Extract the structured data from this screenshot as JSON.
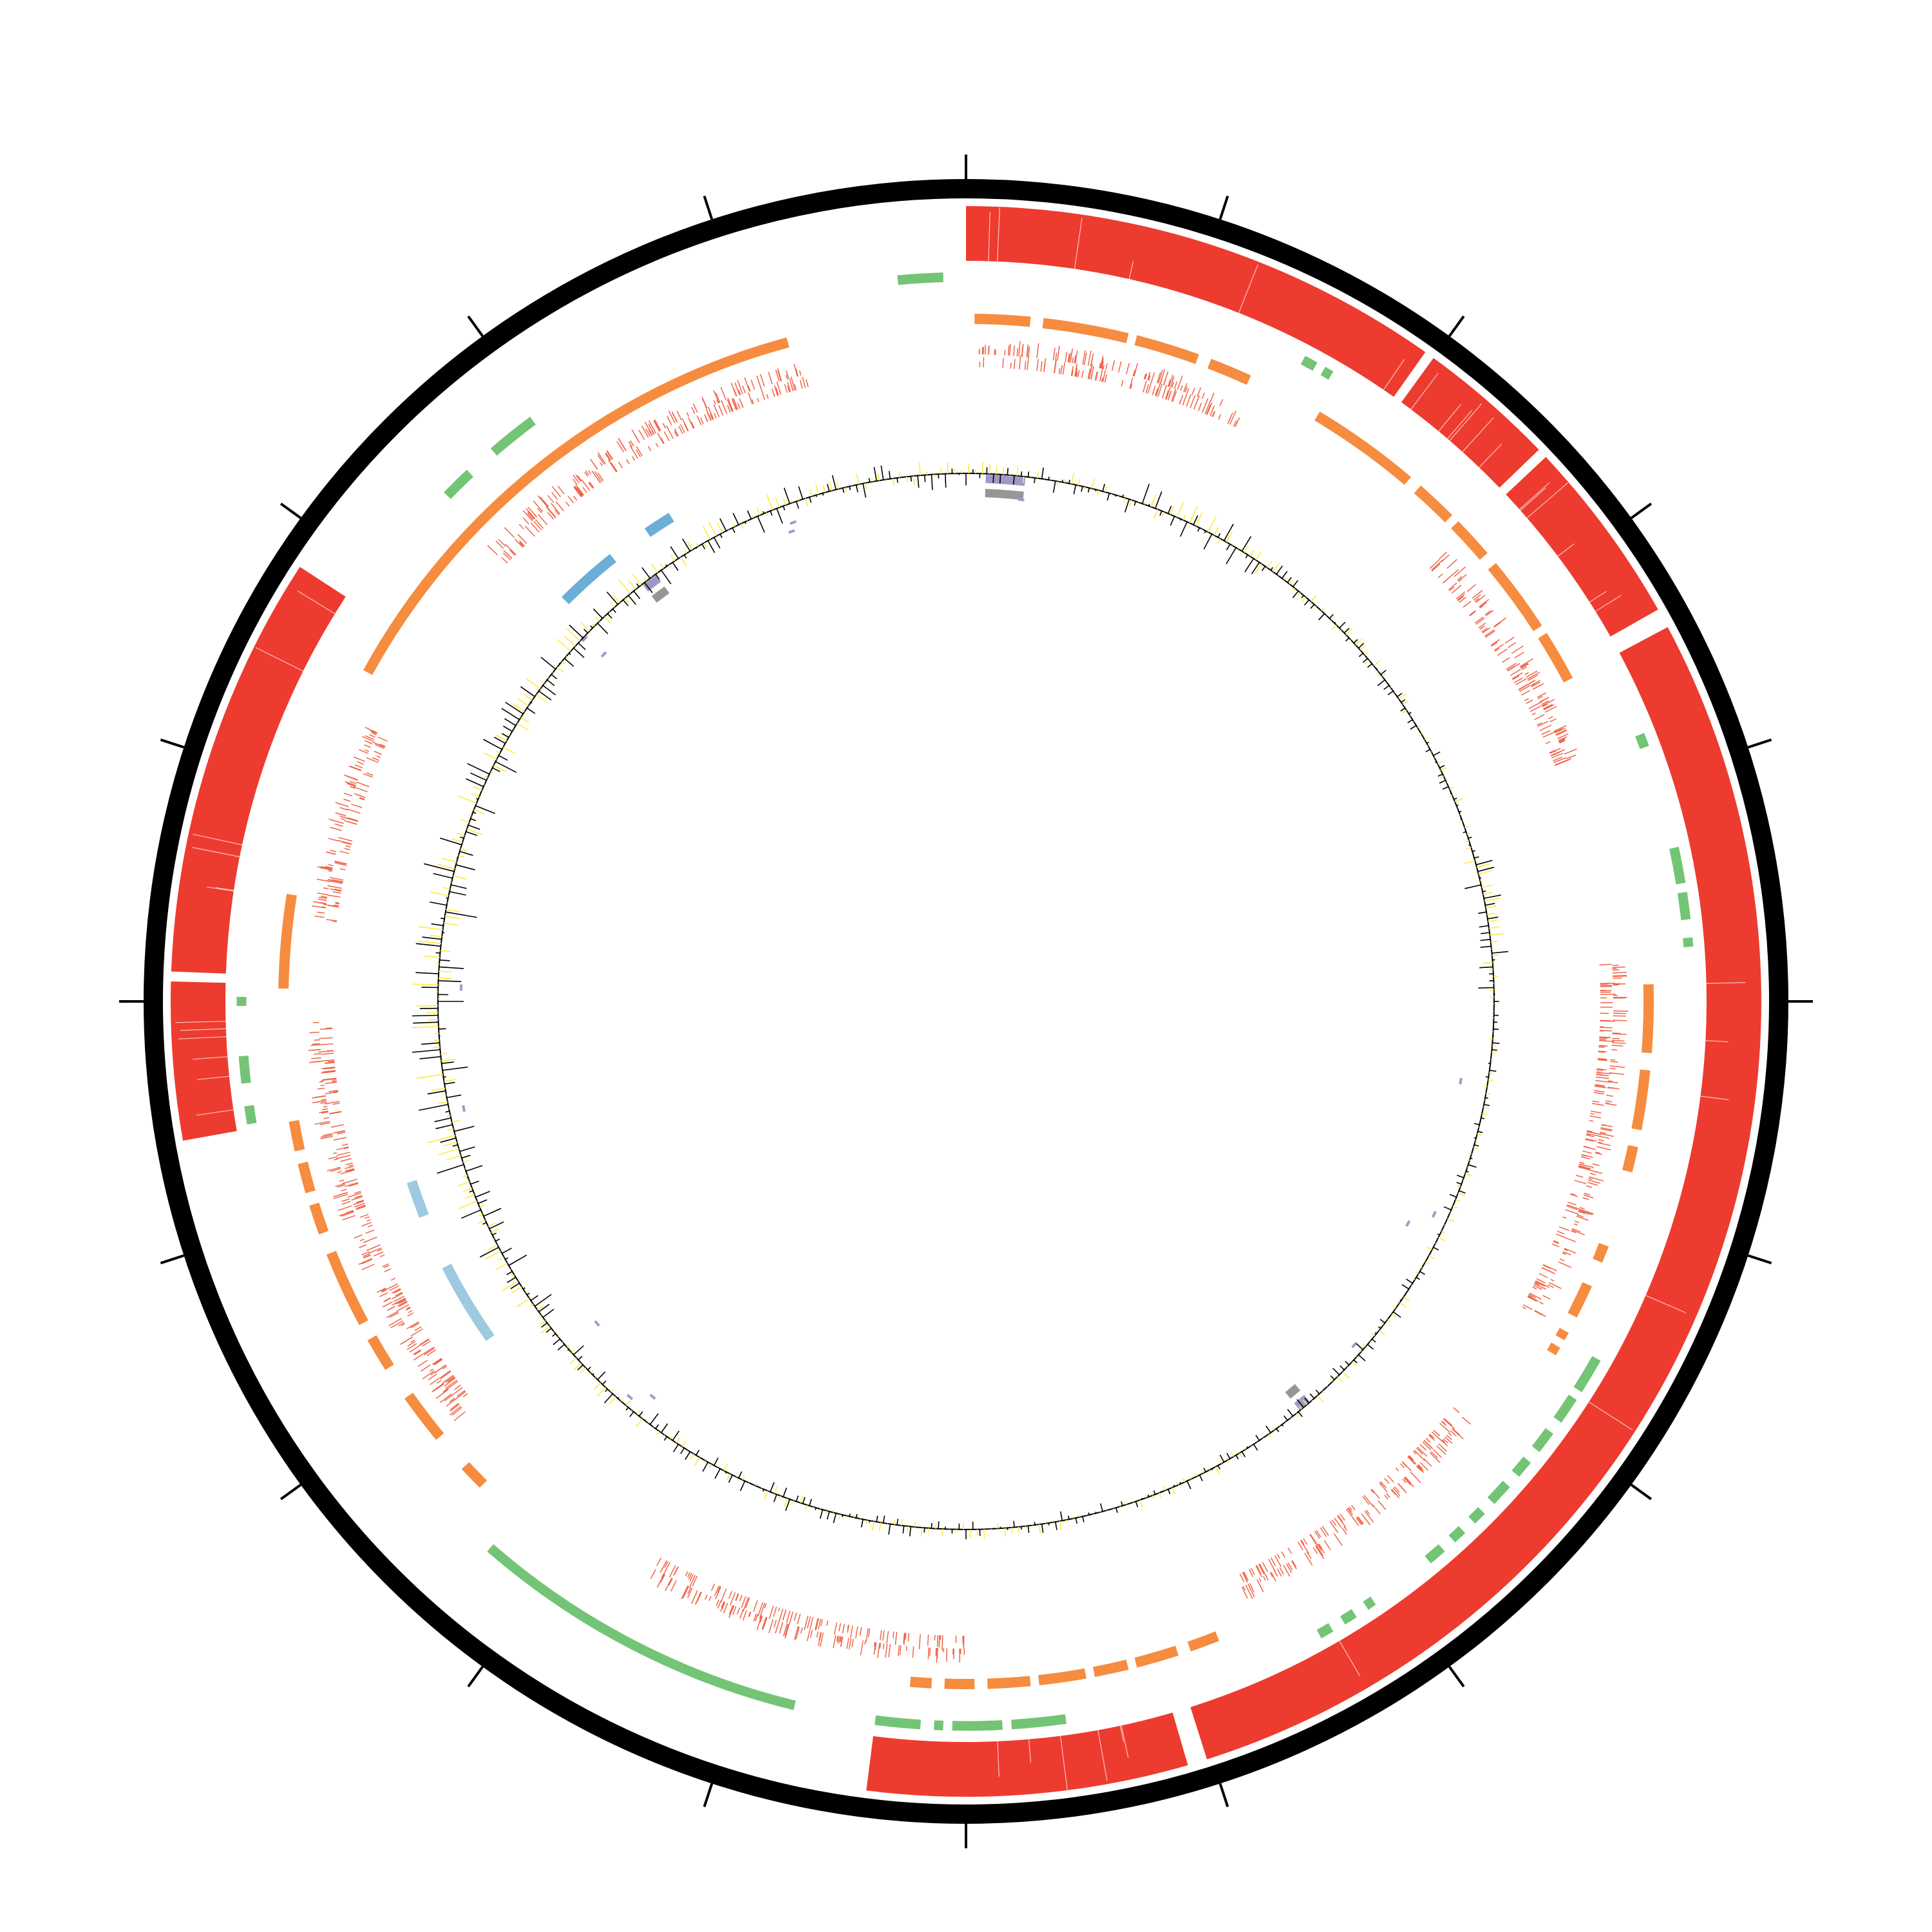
{
  "colors": {
    "background": "#ffffff",
    "backbone": "#000000",
    "homology": "#ee3b2f",
    "segment_orange": "#f68c3f",
    "segment_green": "#74c476",
    "gene_ticks": "#ef6548",
    "segment_blue": "#6baed6",
    "segment_lightblue": "#9ecae1",
    "segment_purple": "#9e9ac8",
    "segment_gray": "#969696",
    "gc_content": "#000000",
    "gc_skew": "#ffeb3b"
  },
  "icons": {
    "genome_map": "circular-genome-map",
    "axis_ticks": "tick-marks"
  },
  "genome_map": {
    "tick_count": 20,
    "tracks": {
      "homology_blocks": [
        {
          "start": 0.0,
          "end": 0.098
        },
        {
          "start": 0.1,
          "end": 0.128
        },
        {
          "start": 0.13,
          "end": 0.168
        },
        {
          "start": 0.172,
          "end": 0.451
        },
        {
          "start": 0.455,
          "end": 0.52
        },
        {
          "start": 0.722,
          "end": 0.754
        },
        {
          "start": 0.756,
          "end": 0.842
        }
      ],
      "segments_orange": [
        {
          "start": 0.002,
          "end": 0.015
        },
        {
          "start": 0.018,
          "end": 0.038
        },
        {
          "start": 0.04,
          "end": 0.055
        },
        {
          "start": 0.058,
          "end": 0.068
        },
        {
          "start": 0.086,
          "end": 0.112
        },
        {
          "start": 0.115,
          "end": 0.125
        },
        {
          "start": 0.127,
          "end": 0.137
        },
        {
          "start": 0.14,
          "end": 0.158
        },
        {
          "start": 0.16,
          "end": 0.172
        },
        {
          "start": 0.246,
          "end": 0.262
        },
        {
          "start": 0.266,
          "end": 0.28
        },
        {
          "start": 0.284,
          "end": 0.29
        },
        {
          "start": 0.308,
          "end": 0.312
        },
        {
          "start": 0.318,
          "end": 0.326
        },
        {
          "start": 0.33,
          "end": 0.332
        },
        {
          "start": 0.334,
          "end": 0.336
        },
        {
          "start": 0.44,
          "end": 0.447
        },
        {
          "start": 0.45,
          "end": 0.46
        },
        {
          "start": 0.462,
          "end": 0.47
        },
        {
          "start": 0.472,
          "end": 0.483
        },
        {
          "start": 0.485,
          "end": 0.495
        },
        {
          "start": 0.498,
          "end": 0.505
        },
        {
          "start": 0.508,
          "end": 0.513
        },
        {
          "start": 0.625,
          "end": 0.631
        },
        {
          "start": 0.64,
          "end": 0.652
        },
        {
          "start": 0.66,
          "end": 0.668
        },
        {
          "start": 0.672,
          "end": 0.69
        },
        {
          "start": 0.695,
          "end": 0.702
        },
        {
          "start": 0.705,
          "end": 0.712
        },
        {
          "start": 0.715,
          "end": 0.722
        },
        {
          "start": 0.753,
          "end": 0.775
        },
        {
          "start": 0.83,
          "end": 0.958
        }
      ],
      "segments_green": [
        {
          "start": 0.077,
          "end": 0.08
        },
        {
          "start": 0.082,
          "end": 0.084
        },
        {
          "start": 0.19,
          "end": 0.193
        },
        {
          "start": 0.216,
          "end": 0.224
        },
        {
          "start": 0.226,
          "end": 0.232
        },
        {
          "start": 0.236,
          "end": 0.238
        },
        {
          "start": 0.332,
          "end": 0.34
        },
        {
          "start": 0.342,
          "end": 0.348
        },
        {
          "start": 0.351,
          "end": 0.356
        },
        {
          "start": 0.359,
          "end": 0.363
        },
        {
          "start": 0.366,
          "end": 0.371
        },
        {
          "start": 0.374,
          "end": 0.377
        },
        {
          "start": 0.38,
          "end": 0.383
        },
        {
          "start": 0.386,
          "end": 0.39
        },
        {
          "start": 0.405,
          "end": 0.407
        },
        {
          "start": 0.41,
          "end": 0.413
        },
        {
          "start": 0.416,
          "end": 0.419
        },
        {
          "start": 0.478,
          "end": 0.49
        },
        {
          "start": 0.492,
          "end": 0.503
        },
        {
          "start": 0.505,
          "end": 0.507
        },
        {
          "start": 0.51,
          "end": 0.52
        },
        {
          "start": 0.538,
          "end": 0.614
        },
        {
          "start": 0.723,
          "end": 0.727
        },
        {
          "start": 0.732,
          "end": 0.738
        },
        {
          "start": 0.749,
          "end": 0.751
        },
        {
          "start": 0.873,
          "end": 0.88
        },
        {
          "start": 0.887,
          "end": 0.898
        },
        {
          "start": 0.985,
          "end": 0.995
        }
      ],
      "gene_tick_regions": [
        {
          "start": 0.003,
          "end": 0.07
        },
        {
          "start": 0.13,
          "end": 0.19
        },
        {
          "start": 0.24,
          "end": 0.33
        },
        {
          "start": 0.36,
          "end": 0.43
        },
        {
          "start": 0.5,
          "end": 0.58
        },
        {
          "start": 0.64,
          "end": 0.745
        },
        {
          "start": 0.77,
          "end": 0.82
        },
        {
          "start": 0.87,
          "end": 0.96
        }
      ],
      "segments_blue": [
        {
          "start": 0.875,
          "end": 0.893
        },
        {
          "start": 0.905,
          "end": 0.913
        }
      ],
      "segments_lightblue": [
        {
          "start": 0.652,
          "end": 0.675
        },
        {
          "start": 0.69,
          "end": 0.7
        }
      ],
      "segments_purple_gray": [
        {
          "start": 0.006,
          "end": 0.018
        },
        {
          "start": 0.387,
          "end": 0.391
        },
        {
          "start": 0.895,
          "end": 0.9
        }
      ]
    },
    "gc_plot": {
      "bins": 480,
      "variance_profile": [
        0.35,
        0.6,
        0.3,
        0.25,
        0.5,
        0.2,
        0.25,
        0.3,
        0.25,
        0.3,
        0.3,
        0.35,
        0.4,
        0.6,
        0.85,
        0.9,
        0.75,
        0.55,
        0.5,
        0.45
      ]
    }
  }
}
